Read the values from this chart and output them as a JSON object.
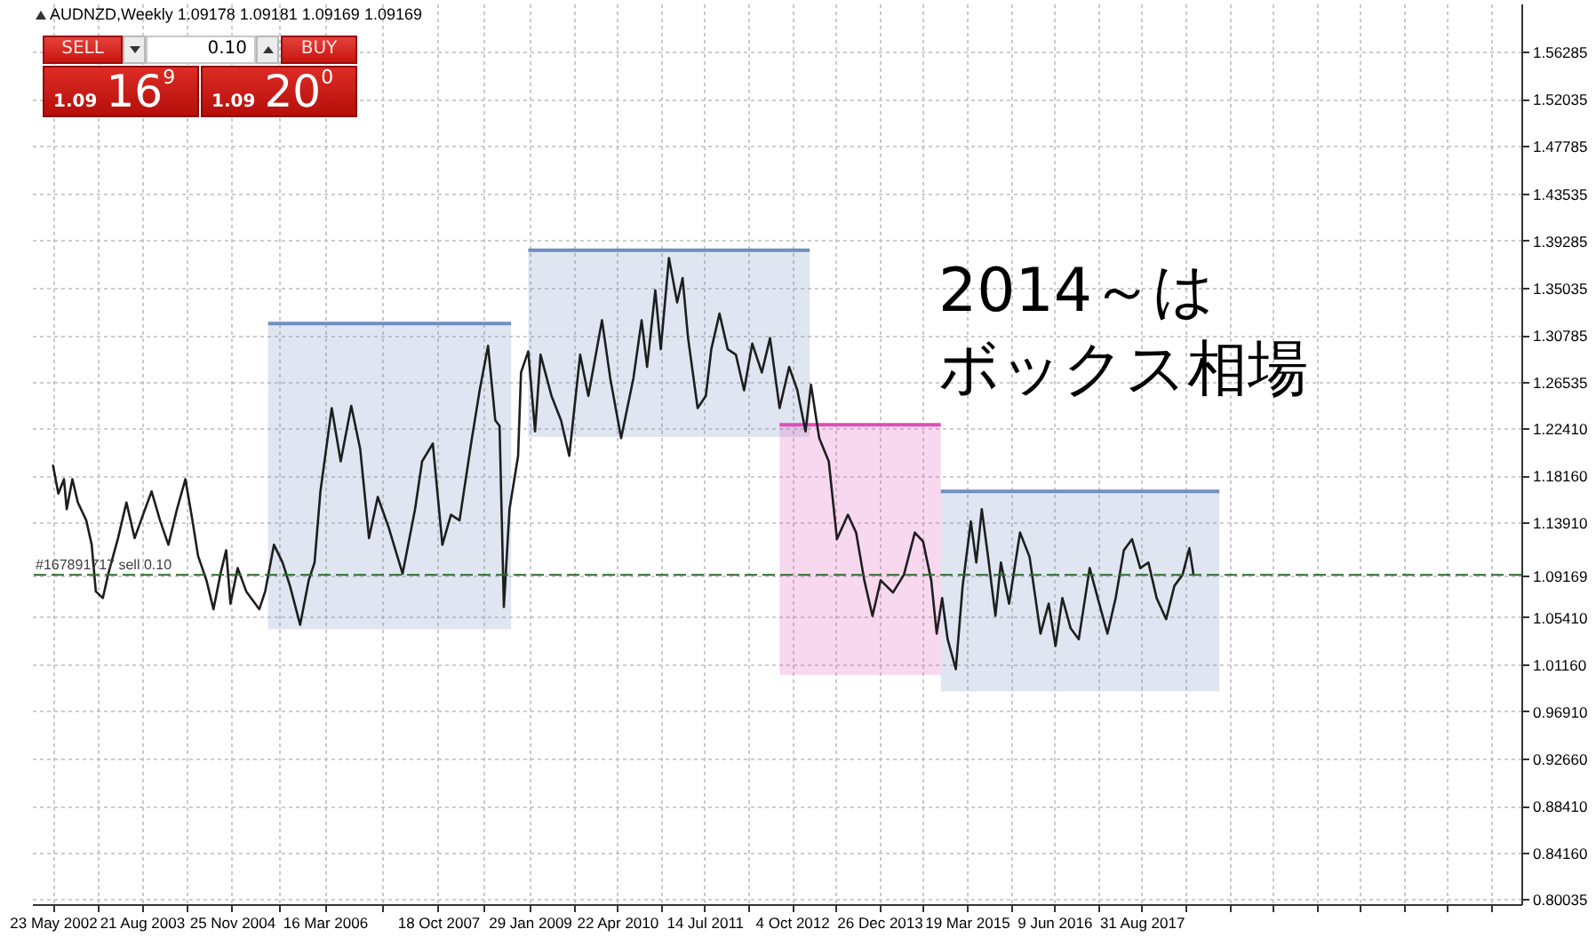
{
  "chart_data": {
    "type": "line",
    "title": "AUDNZD,Weekly  1.09178 1.09181 1.09169 1.09169",
    "series": [
      {
        "color": "#6f8fbf",
        "x": [
          "2005-05-30",
          "2008-10-26"
        ],
        "values": [
          1.318,
          1.318
        ],
        "lower": [
          1.043,
          1.043
        ],
        "upper": [
          1.318,
          1.318
        ]
      },
      {
        "color": "#6f8fbf",
        "x": [
          "2009-01-22",
          "2013-01-03"
        ],
        "values": [
          1.384,
          1.384
        ],
        "lower": [
          1.216,
          1.216
        ],
        "upper": [
          1.384,
          1.384
        ]
      },
      {
        "color": "#df4eb6",
        "x": [
          "2012-08-02",
          "2014-11-06"
        ],
        "values": [
          1.227,
          1.227
        ],
        "lower": [
          1.002,
          1.002
        ],
        "upper": [
          1.227,
          1.227
        ]
      },
      {
        "color": "#6f8fbf",
        "x": [
          "2014-11-06",
          "2018-10-04"
        ],
        "values": [
          1.167,
          1.167
        ],
        "lower": [
          0.987,
          0.987
        ],
        "upper": [
          1.167,
          1.167
        ]
      },
      {
        "color": "#1e1e1e",
        "x": [
          "2002-05-23",
          "2002-06-20",
          "2002-07-19",
          "2002-08-02",
          "2002-08-31",
          "2002-09-28",
          "2002-11-10",
          "2002-12-08",
          "2002-12-29",
          "2003-02-03",
          "2003-03-03",
          "2003-04-22",
          "2003-06-04",
          "2003-07-16",
          "2003-08-28",
          "2003-10-11",
          "2003-11-23",
          "2004-01-05",
          "2004-02-18",
          "2004-04-01",
          "2004-05-07",
          "2004-06-05",
          "2004-07-18",
          "2004-08-23",
          "2004-09-28",
          "2004-10-27",
          "2004-11-18",
          "2004-12-25",
          "2005-02-07",
          "2005-04-15",
          "2005-05-15",
          "2005-06-29",
          "2005-08-12",
          "2005-09-19",
          "2005-11-10",
          "2005-12-24",
          "2006-01-23",
          "2006-02-22",
          "2006-04-21",
          "2006-06-06",
          "2006-07-30",
          "2006-09-14",
          "2006-10-29",
          "2006-12-13",
          "2007-02-06",
          "2007-04-19",
          "2007-06-22",
          "2007-07-28",
          "2007-09-21",
          "2007-11-09",
          "2007-12-23",
          "2008-02-05",
          "2008-04-04",
          "2008-05-18",
          "2008-06-30",
          "2008-08-06",
          "2008-08-28",
          "2008-09-19",
          "2008-10-18",
          "2008-12-01",
          "2008-12-16",
          "2009-01-22",
          "2009-02-26",
          "2009-03-26",
          "2009-05-21",
          "2009-07-09",
          "2009-08-20",
          "2009-10-15",
          "2009-11-26",
          "2010-02-04",
          "2010-03-18",
          "2010-05-13",
          "2010-07-15",
          "2010-08-26",
          "2010-09-23",
          "2010-11-04",
          "2010-12-02",
          "2011-01-13",
          "2011-02-24",
          "2011-03-24",
          "2011-04-21",
          "2011-06-09",
          "2011-07-21",
          "2011-08-18",
          "2011-09-29",
          "2011-11-10",
          "2011-12-22",
          "2012-02-02",
          "2012-03-15",
          "2012-05-03",
          "2012-06-14",
          "2012-08-02",
          "2012-09-20",
          "2012-11-01",
          "2012-12-13",
          "2013-01-10",
          "2013-02-21",
          "2013-04-11",
          "2013-05-23",
          "2013-07-18",
          "2013-08-29",
          "2013-10-10",
          "2013-11-21",
          "2014-01-02",
          "2014-03-06",
          "2014-05-01",
          "2014-06-26",
          "2014-08-07",
          "2014-09-18",
          "2014-10-16",
          "2014-11-13",
          "2014-12-11",
          "2015-01-22",
          "2015-02-26",
          "2015-04-09",
          "2015-05-07",
          "2015-06-04",
          "2015-07-02",
          "2015-08-13",
          "2015-09-10",
          "2015-10-22",
          "2015-12-17",
          "2016-02-04",
          "2016-03-31",
          "2016-05-12",
          "2016-06-16",
          "2016-07-21",
          "2016-09-01",
          "2016-10-13",
          "2016-12-08",
          "2017-01-26",
          "2017-03-09",
          "2017-04-20",
          "2017-06-01",
          "2017-07-13",
          "2017-08-24",
          "2017-10-05",
          "2017-11-16",
          "2018-01-04",
          "2018-02-15",
          "2018-03-29",
          "2018-05-03",
          "2018-05-24"
        ],
        "values": [
          1.191,
          1.165,
          1.178,
          1.151,
          1.178,
          1.157,
          1.141,
          1.119,
          1.077,
          1.071,
          1.093,
          1.125,
          1.157,
          1.125,
          1.146,
          1.167,
          1.141,
          1.119,
          1.151,
          1.178,
          1.141,
          1.109,
          1.087,
          1.061,
          1.093,
          1.114,
          1.066,
          1.098,
          1.077,
          1.061,
          1.077,
          1.119,
          1.103,
          1.082,
          1.047,
          1.087,
          1.103,
          1.167,
          1.242,
          1.194,
          1.244,
          1.205,
          1.125,
          1.162,
          1.135,
          1.093,
          1.151,
          1.194,
          1.21,
          1.119,
          1.146,
          1.141,
          1.21,
          1.258,
          1.298,
          1.231,
          1.226,
          1.063,
          1.151,
          1.199,
          1.274,
          1.293,
          1.221,
          1.29,
          1.253,
          1.231,
          1.199,
          1.29,
          1.253,
          1.321,
          1.269,
          1.215,
          1.269,
          1.321,
          1.279,
          1.348,
          1.295,
          1.377,
          1.337,
          1.359,
          1.305,
          1.242,
          1.253,
          1.295,
          1.327,
          1.295,
          1.29,
          1.258,
          1.3,
          1.274,
          1.305,
          1.242,
          1.279,
          1.258,
          1.221,
          1.263,
          1.215,
          1.194,
          1.124,
          1.146,
          1.13,
          1.087,
          1.055,
          1.087,
          1.076,
          1.092,
          1.13,
          1.122,
          1.087,
          1.039,
          1.071,
          1.034,
          1.007,
          1.082,
          1.14,
          1.103,
          1.151,
          1.114,
          1.055,
          1.103,
          1.066,
          1.13,
          1.108,
          1.039,
          1.066,
          1.028,
          1.071,
          1.044,
          1.034,
          1.098,
          1.066,
          1.039,
          1.071,
          1.114,
          1.124,
          1.098,
          1.103,
          1.071,
          1.052,
          1.082,
          1.092,
          1.116,
          1.092
        ]
      }
    ],
    "xlim": [
      "2002-02-05",
      "2022-12-29"
    ],
    "xticks": [
      {
        "value": "2002-05-23",
        "label": "23 May 2002"
      },
      {
        "value": "2003-01-06",
        "label": null
      },
      {
        "value": "2003-08-21",
        "label": "21 Aug 2003"
      },
      {
        "value": "2004-04-08",
        "label": null
      },
      {
        "value": "2004-11-25",
        "label": "25 Nov 2004"
      },
      {
        "value": "2005-07-21",
        "label": null
      },
      {
        "value": "2006-03-16",
        "label": "16 Mar 2006"
      },
      {
        "value": "2007-01-01",
        "label": null
      },
      {
        "value": "2007-10-18",
        "label": "18 Oct 2007"
      },
      {
        "value": "2008-06-08",
        "label": null
      },
      {
        "value": "2009-01-29",
        "label": "29 Jan 2009"
      },
      {
        "value": "2009-09-10",
        "label": null
      },
      {
        "value": "2010-04-22",
        "label": "22 Apr 2010"
      },
      {
        "value": "2010-12-02",
        "label": null
      },
      {
        "value": "2011-07-14",
        "label": "14 Jul 2011"
      },
      {
        "value": "2012-02-23",
        "label": null
      },
      {
        "value": "2012-10-04",
        "label": "4 Oct 2012"
      },
      {
        "value": "2013-05-16",
        "label": null
      },
      {
        "value": "2013-12-26",
        "label": "26 Dec 2013"
      },
      {
        "value": "2014-08-07",
        "label": null
      },
      {
        "value": "2015-03-19",
        "label": "19 Mar 2015"
      },
      {
        "value": "2015-10-29",
        "label": null
      },
      {
        "value": "2016-06-09",
        "label": "9 Jun 2016"
      },
      {
        "value": "2017-01-19",
        "label": null
      },
      {
        "value": "2017-08-31",
        "label": "31 Aug 2017"
      },
      {
        "value": "2018-04-12",
        "label": null
      },
      {
        "value": "2018-11-22",
        "label": null
      },
      {
        "value": "2019-07-04",
        "label": null
      },
      {
        "value": "2020-02-13",
        "label": null
      },
      {
        "value": "2020-09-24",
        "label": null
      },
      {
        "value": "2021-05-06",
        "label": null
      },
      {
        "value": "2021-12-16",
        "label": null
      },
      {
        "value": "2022-07-28",
        "label": null
      }
    ],
    "ylim": [
      0.7956,
      1.606
    ],
    "yticks": [
      0.80035,
      {
        "value": 0.8416,
        "label": "0.84160"
      },
      {
        "value": 0.8841,
        "label": "0.88410"
      },
      {
        "value": 0.9266,
        "label": "0.92660"
      },
      {
        "value": 0.9691,
        "label": "0.96910"
      },
      {
        "value": 1.0116,
        "label": "1.01160"
      },
      {
        "value": 1.0541,
        "label": "1.05410"
      },
      1.09169,
      {
        "value": 1.1391,
        "label": "1.13910"
      },
      {
        "value": 1.1816,
        "label": "1.18160"
      },
      {
        "value": 1.2241,
        "label": "1.22410"
      },
      1.26535,
      1.30785,
      1.35035,
      1.39285,
      1.43535,
      1.47785,
      1.52035,
      1.56285
    ],
    "grid": true,
    "ref_lines": [
      {
        "axis": "y",
        "value": 1.092,
        "label": "#167891717 sell 0.10",
        "color": "#2e6b2e",
        "line_style": "dashed"
      }
    ],
    "annotations": [
      "SELL",
      "0.10",
      "BUY",
      "1.09 16$^{9}$",
      "1.09 20$^{0}$",
      "2014～は",
      "ボックス相場"
    ]
  }
}
